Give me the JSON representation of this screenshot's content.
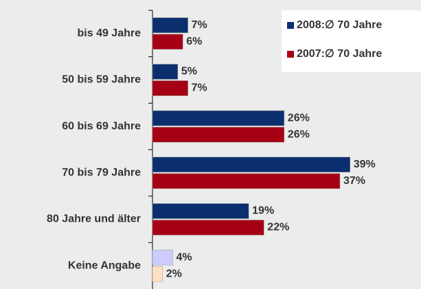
{
  "chart_data": {
    "type": "hbar",
    "categories": [
      "bis 49 Jahre",
      "50 bis 59 Jahre",
      "60 bis 69 Jahre",
      "70 bis 79 Jahre",
      "80 Jahre und älter",
      "Keine Angabe"
    ],
    "series": [
      {
        "name": "2008:∅ 70 Jahre",
        "color": "#0b2f6e",
        "colors": [
          "#0b2f6e",
          "#0b2f6e",
          "#0b2f6e",
          "#0b2f6e",
          "#0b2f6e",
          "#ccccff"
        ],
        "values": [
          7,
          5,
          26,
          39,
          19,
          4
        ],
        "value_labels": [
          "7%",
          "5%",
          "26%",
          "39%",
          "19%",
          "4%"
        ]
      },
      {
        "name": "2007:∅ 70 Jahre",
        "color": "#a60014",
        "colors": [
          "#a60014",
          "#a60014",
          "#a60014",
          "#a60014",
          "#a60014",
          "#ffe0c0"
        ],
        "values": [
          6,
          7,
          26,
          37,
          22,
          2
        ],
        "value_labels": [
          "6%",
          "7%",
          "26%",
          "37%",
          "22%",
          "2%"
        ]
      }
    ],
    "xlim": [
      0,
      53
    ],
    "legend": "upper right"
  }
}
